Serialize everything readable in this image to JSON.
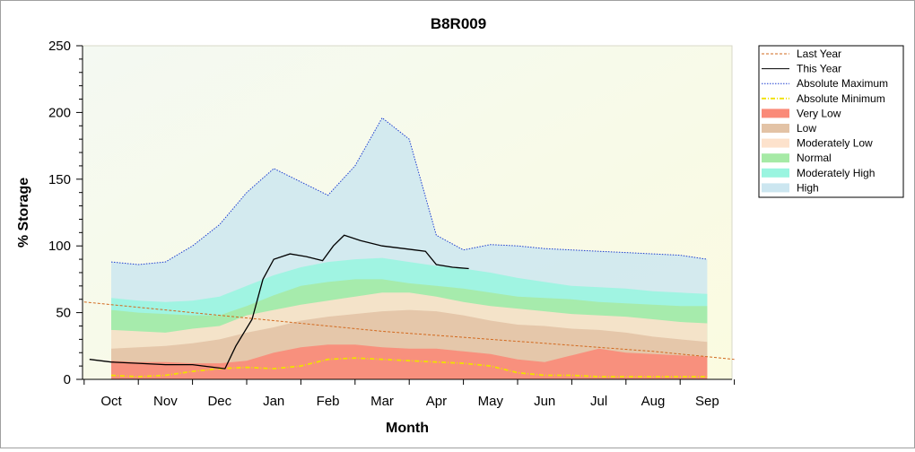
{
  "chart_data": {
    "type": "area",
    "title": "B8R009",
    "xlabel": "Month",
    "ylabel": "% Storage",
    "ylim": [
      0,
      250
    ],
    "yticks": [
      "0",
      "50",
      "100",
      "150",
      "200",
      "250"
    ],
    "categories": [
      "Oct",
      "Nov",
      "Dec",
      "Jan",
      "Feb",
      "Mar",
      "Apr",
      "May",
      "Jun",
      "Jul",
      "Aug",
      "Sep"
    ],
    "grid": false,
    "legend_position": "right",
    "band_x": [
      0,
      0.5,
      1,
      1.5,
      2,
      2.5,
      3,
      3.5,
      4,
      4.5,
      5,
      5.5,
      6,
      6.5,
      7,
      7.5,
      8,
      8.5,
      9,
      9.5,
      10,
      10.5,
      11
    ],
    "bands": [
      {
        "name": "Very Low",
        "color": "#fa8a78",
        "upper": [
          14,
          13,
          13,
          12,
          12,
          14,
          20,
          24,
          26,
          26,
          24,
          23,
          23,
          21,
          19,
          15,
          13,
          18,
          23,
          20,
          19,
          18,
          17
        ]
      },
      {
        "name": "Low",
        "color": "#e3c3a6",
        "upper": [
          23,
          24,
          25,
          27,
          30,
          35,
          39,
          44,
          47,
          49,
          51,
          52,
          51,
          48,
          44,
          41,
          40,
          38,
          37,
          35,
          32,
          30,
          28
        ]
      },
      {
        "name": "Moderately Low",
        "color": "#fde2cc",
        "upper": [
          37,
          36,
          35,
          38,
          40,
          48,
          52,
          56,
          59,
          62,
          65,
          65,
          62,
          58,
          55,
          53,
          51,
          49,
          48,
          47,
          45,
          43,
          42
        ]
      },
      {
        "name": "Normal",
        "color": "#a6eaa6",
        "upper": [
          52,
          50,
          49,
          48,
          48,
          55,
          63,
          70,
          73,
          75,
          75,
          72,
          70,
          68,
          65,
          62,
          61,
          60,
          58,
          57,
          56,
          55,
          55
        ]
      },
      {
        "name": "Moderately High",
        "color": "#9af5e0",
        "upper": [
          61,
          59,
          58,
          59,
          62,
          70,
          78,
          84,
          88,
          90,
          91,
          88,
          85,
          83,
          80,
          76,
          73,
          70,
          69,
          68,
          66,
          65,
          64
        ]
      },
      {
        "name": "High",
        "color": "#cce6f0",
        "upper": [
          88,
          86,
          88,
          100,
          116,
          140,
          158,
          148,
          138,
          160,
          196,
          180,
          108,
          97,
          101,
          100,
          98,
          97,
          96,
          95,
          94,
          93,
          90
        ]
      }
    ],
    "series": [
      {
        "name": "Last Year",
        "color": "#d2691e",
        "style": "dashed",
        "x": [
          -0.5,
          0,
          1,
          2,
          3,
          4,
          5,
          6,
          7,
          8,
          9,
          10,
          11,
          11.5
        ],
        "values": [
          58,
          56,
          52,
          48,
          44,
          40,
          36,
          33,
          30,
          27,
          24,
          21,
          17,
          15
        ]
      },
      {
        "name": "This Year",
        "color": "#000000",
        "style": "solid",
        "x": [
          -0.4,
          0,
          0.5,
          1,
          1.5,
          1.9,
          2.1,
          2.3,
          2.6,
          2.8,
          3,
          3.3,
          3.6,
          3.9,
          4.1,
          4.3,
          4.6,
          5,
          5.4,
          5.6,
          5.8,
          6,
          6.3,
          6.6
        ],
        "values": [
          15,
          13,
          12,
          11,
          11,
          9,
          8,
          25,
          45,
          75,
          90,
          94,
          92,
          89,
          100,
          108,
          104,
          100,
          98,
          97,
          96,
          86,
          84,
          83
        ]
      },
      {
        "name": "Absolute Maximum",
        "color": "#1f3fd0",
        "style": "dotted",
        "x": [
          0,
          0.5,
          1,
          1.5,
          2,
          2.5,
          3,
          3.5,
          4,
          4.5,
          5,
          5.5,
          6,
          6.5,
          7,
          7.5,
          8,
          8.5,
          9,
          9.5,
          10,
          10.5,
          11
        ],
        "values": [
          88,
          86,
          88,
          100,
          116,
          140,
          158,
          148,
          138,
          160,
          196,
          180,
          108,
          97,
          101,
          100,
          98,
          97,
          96,
          95,
          94,
          93,
          90
        ]
      },
      {
        "name": "Absolute Minimum",
        "color": "#f0e000",
        "style": "dashdot",
        "x": [
          0,
          0.5,
          1,
          1.5,
          2,
          2.5,
          3,
          3.5,
          4,
          4.5,
          5,
          5.5,
          6,
          6.5,
          7,
          7.5,
          8,
          8.5,
          9,
          9.5,
          10,
          10.5,
          11
        ],
        "values": [
          3,
          2,
          3,
          6,
          8,
          9,
          8,
          10,
          15,
          16,
          15,
          14,
          13,
          12,
          10,
          5,
          3,
          3,
          2,
          2,
          2,
          2,
          2
        ]
      }
    ],
    "legend": [
      {
        "name": "Last Year",
        "kind": "line",
        "color": "#d2691e",
        "style": "dashed"
      },
      {
        "name": "This Year",
        "kind": "line",
        "color": "#000000",
        "style": "solid"
      },
      {
        "name": "Absolute Maximum",
        "kind": "line",
        "color": "#1f3fd0",
        "style": "dotted"
      },
      {
        "name": "Absolute Minimum",
        "kind": "line",
        "color": "#f0e000",
        "style": "dashdot"
      },
      {
        "name": "Very Low",
        "kind": "band",
        "color": "#fa8a78"
      },
      {
        "name": "Low",
        "kind": "band",
        "color": "#e3c3a6"
      },
      {
        "name": "Moderately Low",
        "kind": "band",
        "color": "#fde2cc"
      },
      {
        "name": "Normal",
        "kind": "band",
        "color": "#a6eaa6"
      },
      {
        "name": "Moderately High",
        "kind": "band",
        "color": "#9af5e0"
      },
      {
        "name": "High",
        "kind": "band",
        "color": "#cce6f0"
      }
    ]
  }
}
